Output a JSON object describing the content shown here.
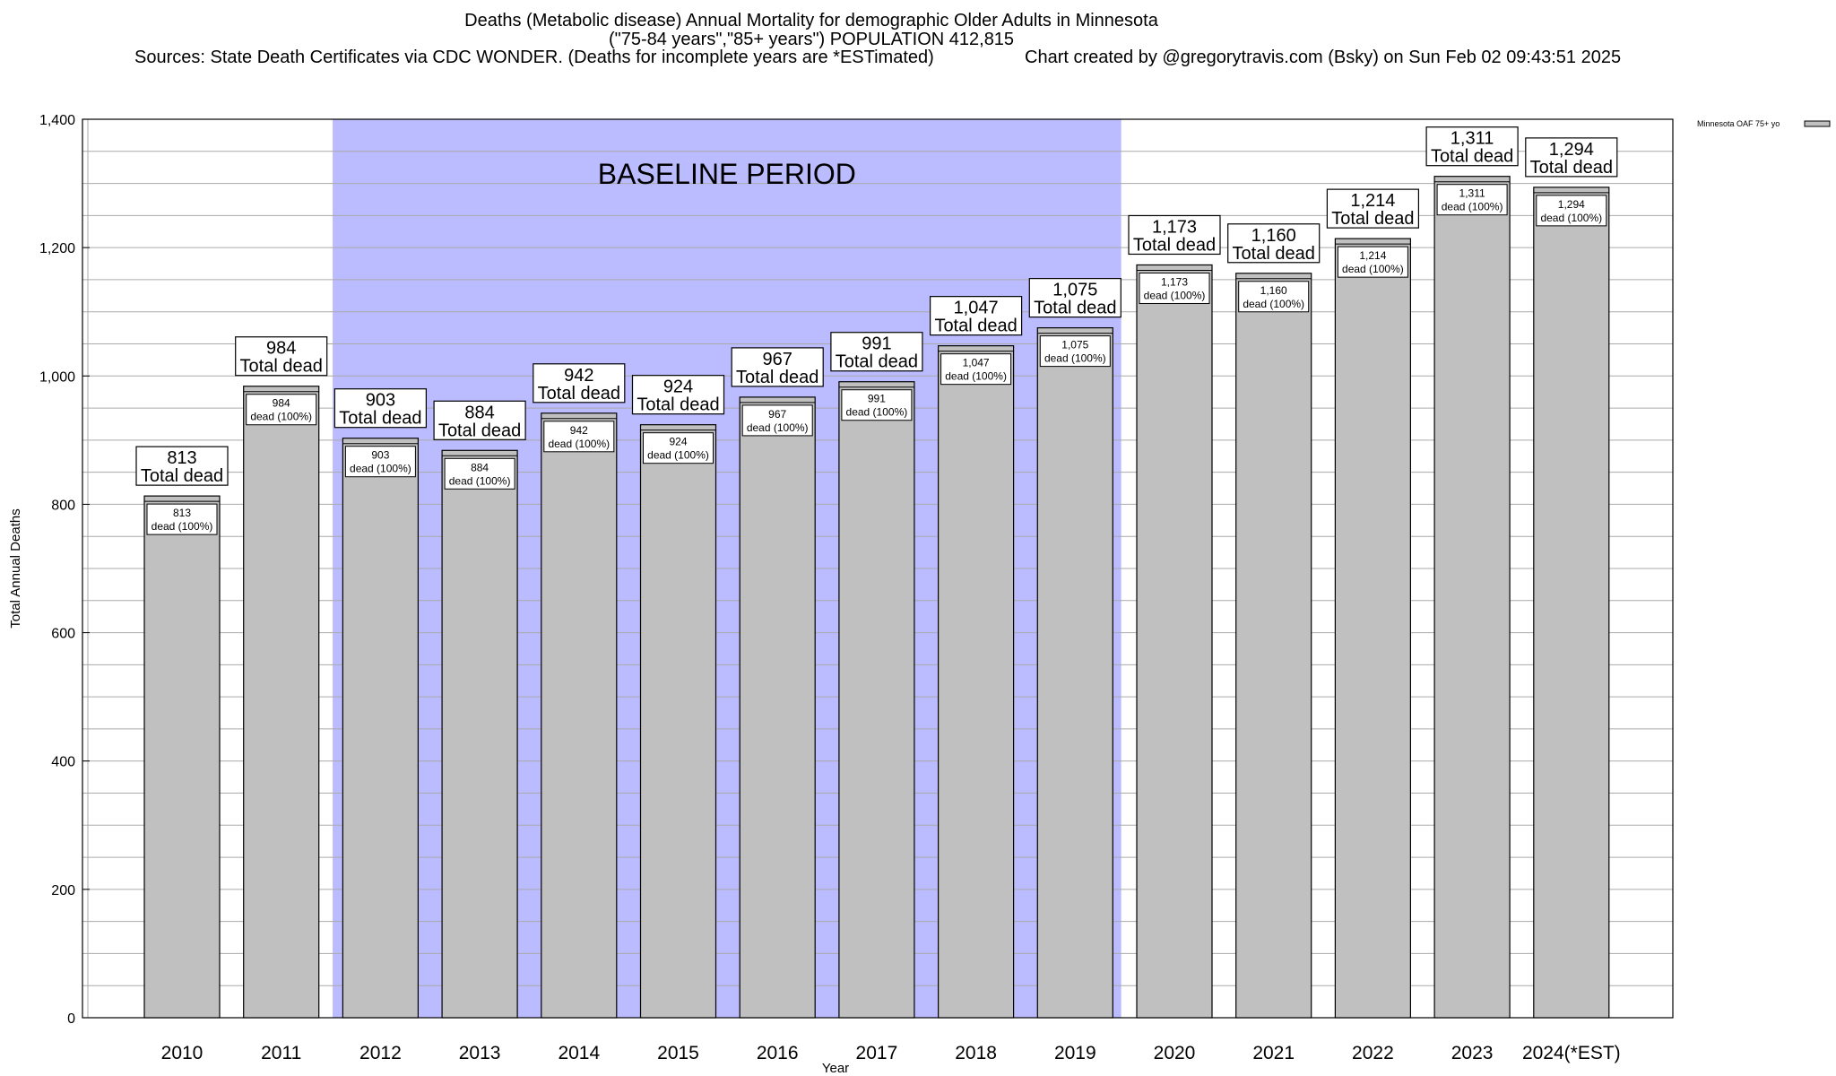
{
  "titles": {
    "line1": "Deaths (Metabolic disease) Annual Mortality for demographic Older Adults in Minnesota",
    "line2": "(\"75-84 years\",\"85+ years\") POPULATION 412,815",
    "sources": "Sources: State Death Certificates via CDC WONDER. (Deaths for incomplete years are *ESTimated)",
    "credit": "Chart created by @gregorytravis.com (Bsky) on Sun Feb 02 09:43:51 2025"
  },
  "chart_data": {
    "type": "bar",
    "xlabel": "Year",
    "ylabel": "Total Annual Deaths",
    "ylim": [
      0,
      1400
    ],
    "yticks": [
      0,
      200,
      400,
      600,
      800,
      1000,
      1200,
      1400
    ],
    "ytick_labels": [
      "0",
      "200",
      "400",
      "600",
      "800",
      "1,000",
      "1,200",
      "1,400"
    ],
    "grid": true,
    "legend": {
      "placement": "top-right",
      "entries": [
        "Minnesota OAF 75+ yo"
      ]
    },
    "categories": [
      "2010",
      "2011",
      "2012",
      "2013",
      "2014",
      "2015",
      "2016",
      "2017",
      "2018",
      "2019",
      "2020",
      "2021",
      "2022",
      "2023",
      "2024(*EST)"
    ],
    "series": [
      {
        "name": "Minnesota OAF 75+ yo",
        "color": "#c0c0c0",
        "values": [
          813,
          984,
          903,
          884,
          942,
          924,
          967,
          991,
          1047,
          1075,
          1173,
          1160,
          1214,
          1311,
          1294
        ]
      }
    ],
    "value_labels": [
      "813",
      "984",
      "903",
      "884",
      "942",
      "924",
      "967",
      "991",
      "1,047",
      "1,075",
      "1,173",
      "1,160",
      "1,214",
      "1,311",
      "1,294"
    ],
    "total_label": "Total dead",
    "inner_label": "dead (100%)",
    "baseline": {
      "label": "BASELINE PERIOD",
      "from": "2012",
      "to": "2019",
      "color": "#bbbbff"
    }
  }
}
